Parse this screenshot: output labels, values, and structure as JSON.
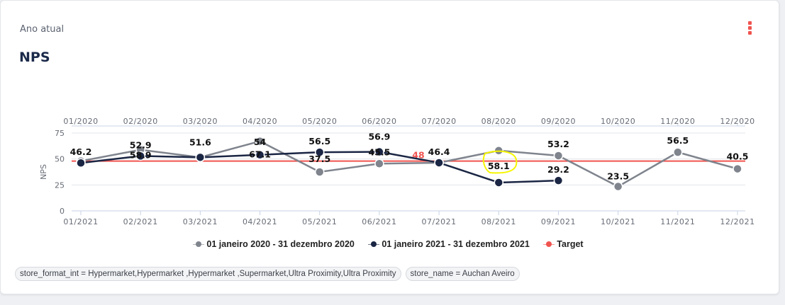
{
  "card": {
    "subtitle": "Ano atual",
    "title": "NPS",
    "menu_icon": "kebab-menu-icon"
  },
  "colors": {
    "series_2020": "#7f848d",
    "series_2021": "#1b2644",
    "target": "#f0534f"
  },
  "chart_data": {
    "type": "line",
    "title": "NPS",
    "ylabel": "NPS",
    "xlabel": "",
    "ylim": [
      0,
      75
    ],
    "yticks": [
      0,
      25,
      50,
      75
    ],
    "grid": true,
    "x_top_ticks": [
      "01/2020",
      "02/2020",
      "03/2020",
      "04/2020",
      "05/2020",
      "06/2020",
      "07/2020",
      "08/2020",
      "09/2020",
      "10/2020",
      "11/2020",
      "12/2020"
    ],
    "x_bottom_ticks": [
      "01/2021",
      "02/2021",
      "03/2021",
      "04/2021",
      "05/2021",
      "06/2021",
      "07/2021",
      "08/2021",
      "09/2021",
      "10/2021",
      "11/2021",
      "12/2021"
    ],
    "series": [
      {
        "name": "01 janeiro 2020 - 31 dezembro 2020",
        "color": "#7f848d",
        "values": [
          48,
          58.9,
          51.6,
          67.1,
          37.5,
          45.5,
          46.4,
          58.1,
          53.2,
          23.5,
          56.5,
          40.5
        ],
        "labels": [
          "",
          "58.9",
          "",
          "67.1",
          "37.5",
          "45.5",
          "",
          "58.1",
          "53.2",
          "23.5",
          "56.5",
          "40.5"
        ]
      },
      {
        "name": "01 janeiro 2021 - 31 dezembro 2021",
        "color": "#1b2644",
        "values": [
          46.2,
          52.9,
          51.6,
          54,
          56.5,
          56.9,
          46.4,
          27.3,
          29.2,
          null,
          null,
          null
        ],
        "labels": [
          "46.2",
          "52.9",
          "51.6",
          "54",
          "56.5",
          "56.9",
          "46.4",
          "",
          "29.2",
          "",
          "",
          ""
        ]
      }
    ],
    "target": {
      "name": "Target",
      "value": 48,
      "label": "48",
      "color": "#f0534f"
    },
    "legend_position": "bottom-center"
  },
  "legend": [
    {
      "label": "01 janeiro 2020 - 31 dezembro 2020",
      "color": "#7f848d"
    },
    {
      "label": "01 janeiro 2021 - 31 dezembro 2021",
      "color": "#1b2644"
    },
    {
      "label": "Target",
      "color": "#f0534f"
    }
  ],
  "filters": [
    "store_format_int = Hypermarket,Hypermarket ,Hypermarket ,Supermarket,Ultra Proximity,Ultra Proximity",
    "store_name = Auchan Aveiro"
  ]
}
